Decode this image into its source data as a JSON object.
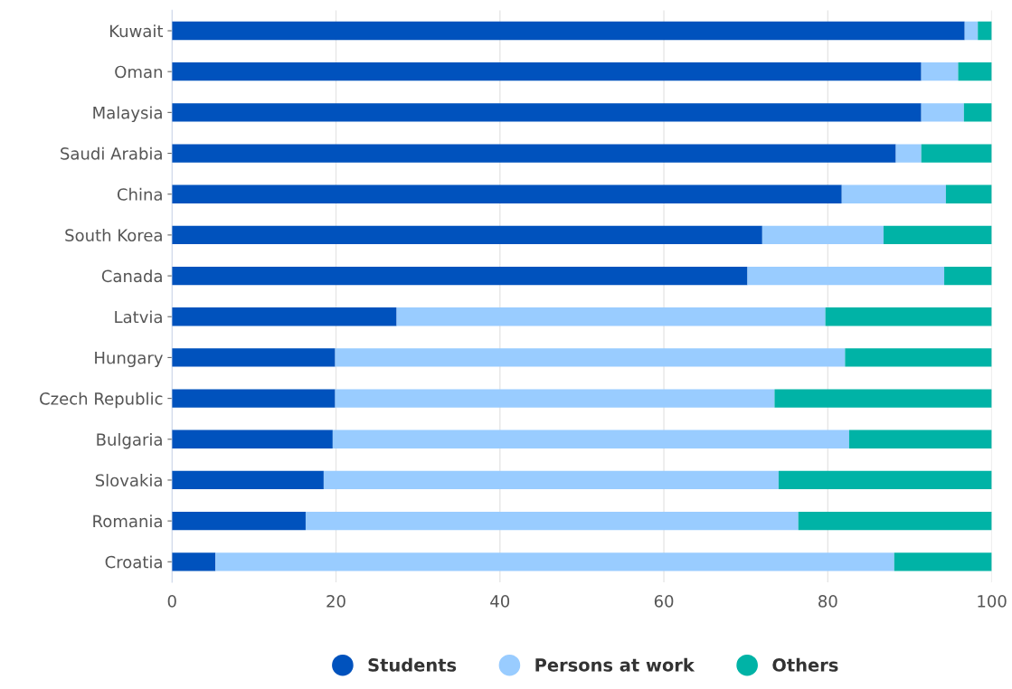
{
  "chart_data": {
    "type": "bar",
    "orientation": "horizontal",
    "stacked": true,
    "categories": [
      "Kuwait",
      "Oman",
      "Malaysia",
      "Saudi Arabia",
      "China",
      "South Korea",
      "Canada",
      "Latvia",
      "Hungary",
      "Czech Republic",
      "Bulgaria",
      "Slovakia",
      "Romania",
      "Croatia"
    ],
    "series": [
      {
        "name": "Students",
        "color": "#0052bd",
        "values": [
          96.7,
          91.4,
          91.4,
          88.3,
          81.7,
          72.0,
          70.2,
          27.4,
          19.9,
          19.9,
          19.6,
          18.5,
          16.3,
          5.3
        ]
      },
      {
        "name": "Persons at work",
        "color": "#99ccff",
        "values": [
          1.6,
          4.5,
          5.2,
          3.1,
          12.7,
          14.8,
          24.0,
          52.3,
          62.2,
          53.6,
          63.0,
          55.5,
          60.1,
          82.8
        ]
      },
      {
        "name": "Others",
        "color": "#00b3a6",
        "values": [
          1.7,
          4.1,
          3.4,
          8.6,
          5.6,
          13.2,
          5.8,
          20.3,
          17.9,
          26.5,
          17.4,
          26.0,
          23.6,
          11.9
        ]
      }
    ],
    "xlim": [
      0,
      100
    ],
    "xticks": [
      0,
      20,
      40,
      60,
      80,
      100
    ],
    "grid": "x",
    "legend": "bottom"
  }
}
